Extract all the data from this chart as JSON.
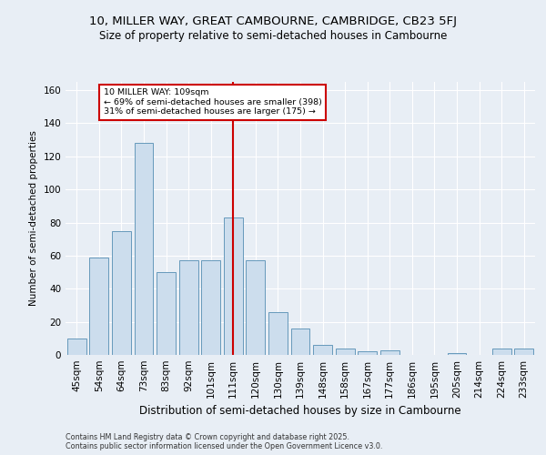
{
  "title1": "10, MILLER WAY, GREAT CAMBOURNE, CAMBRIDGE, CB23 5FJ",
  "title2": "Size of property relative to semi-detached houses in Cambourne",
  "xlabel": "Distribution of semi-detached houses by size in Cambourne",
  "ylabel": "Number of semi-detached properties",
  "categories": [
    "45sqm",
    "54sqm",
    "64sqm",
    "73sqm",
    "83sqm",
    "92sqm",
    "101sqm",
    "111sqm",
    "120sqm",
    "130sqm",
    "139sqm",
    "148sqm",
    "158sqm",
    "167sqm",
    "177sqm",
    "186sqm",
    "195sqm",
    "205sqm",
    "214sqm",
    "224sqm",
    "233sqm"
  ],
  "values": [
    10,
    59,
    75,
    128,
    50,
    57,
    57,
    83,
    57,
    26,
    16,
    6,
    4,
    2,
    3,
    0,
    0,
    1,
    0,
    4,
    4
  ],
  "bar_color": "#ccdded",
  "bar_edge_color": "#6699bb",
  "vline_x_index": 7,
  "vline_color": "#cc0000",
  "annotation_title": "10 MILLER WAY: 109sqm",
  "annotation_line1": "← 69% of semi-detached houses are smaller (398)",
  "annotation_line2": "31% of semi-detached houses are larger (175) →",
  "annotation_box_edgecolor": "#cc0000",
  "ylim": [
    0,
    165
  ],
  "yticks": [
    0,
    20,
    40,
    60,
    80,
    100,
    120,
    140,
    160
  ],
  "footer1": "Contains HM Land Registry data © Crown copyright and database right 2025.",
  "footer2": "Contains public sector information licensed under the Open Government Licence v3.0.",
  "background_color": "#e8eef5",
  "grid_color": "#ffffff",
  "title1_fontsize": 9.5,
  "title2_fontsize": 8.5,
  "xlabel_fontsize": 8.5,
  "ylabel_fontsize": 7.5,
  "tick_fontsize": 7.5,
  "footer_fontsize": 5.8
}
